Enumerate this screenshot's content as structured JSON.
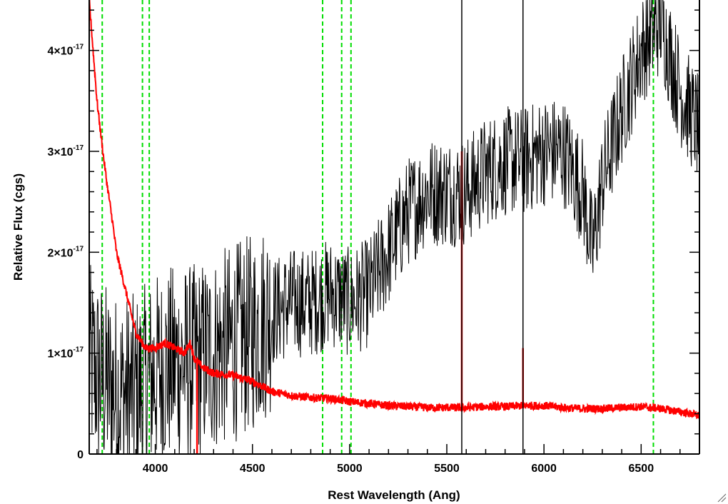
{
  "chart_data": {
    "type": "line",
    "title": "",
    "xlabel": "Rest Wavelength (Ang)",
    "ylabel": "Relative Flux (cgs)",
    "xlim": [
      3660,
      6800
    ],
    "ylim": [
      0,
      4.5e-17
    ],
    "x_ticks": [
      {
        "value": 4000,
        "label": "4000"
      },
      {
        "value": 4500,
        "label": "4500"
      },
      {
        "value": 5000,
        "label": "5000"
      },
      {
        "value": 5500,
        "label": "5500"
      },
      {
        "value": 6000,
        "label": "6000"
      },
      {
        "value": 6500,
        "label": "6500"
      }
    ],
    "y_ticks": [
      {
        "value": 0,
        "mantissa": "0",
        "exponent": ""
      },
      {
        "value": 1e-17,
        "mantissa": "1×10",
        "exponent": "-17"
      },
      {
        "value": 2e-17,
        "mantissa": "2×10",
        "exponent": "-17"
      },
      {
        "value": 3e-17,
        "mantissa": "3×10",
        "exponent": "-17"
      },
      {
        "value": 4e-17,
        "mantissa": "4×10",
        "exponent": "-17"
      }
    ],
    "grid": false,
    "series": [
      {
        "color": "#000000",
        "style": "noisy",
        "x": [
          3660,
          3700,
          3750,
          3800,
          3850,
          3900,
          3950,
          4000,
          4100,
          4200,
          4300,
          4400,
          4500,
          4600,
          4700,
          4800,
          4900,
          5000,
          5100,
          5200,
          5300,
          5400,
          5500,
          5600,
          5700,
          5800,
          5900,
          6000,
          6100,
          6200,
          6250,
          6300,
          6400,
          6500,
          6600,
          6700,
          6800
        ],
        "y": [
          9e-18,
          8e-18,
          7e-18,
          6e-18,
          6e-18,
          6e-18,
          7e-18,
          8e-18,
          9e-18,
          9e-18,
          1e-17,
          1.1e-17,
          1.2e-17,
          1.4e-17,
          1.5e-17,
          1.5e-17,
          1.6e-17,
          1.5e-17,
          1.6e-17,
          2e-17,
          2.4e-17,
          2.6e-17,
          2.6e-17,
          2.6e-17,
          2.8e-17,
          2.9e-17,
          2.9e-17,
          3e-17,
          3e-17,
          2.6e-17,
          2e-17,
          2.7e-17,
          3.4e-17,
          4e-17,
          4.3e-17,
          3.6e-17,
          3.2e-17
        ]
      },
      {
        "color": "#ff0000",
        "style": "smooth",
        "x": [
          3660,
          3700,
          3730,
          3750,
          3780,
          3800,
          3850,
          3900,
          3950,
          4000,
          4050,
          4100,
          4150,
          4180,
          4200,
          4250,
          4300,
          4400,
          4500,
          4600,
          4700,
          4800,
          4900,
          5000,
          5100,
          5200,
          5300,
          5400,
          5500,
          5600,
          5700,
          5800,
          5900,
          6000,
          6100,
          6200,
          6300,
          6400,
          6500,
          6600,
          6700,
          6800
        ],
        "y": [
          4.5e-17,
          3.5e-17,
          3e-17,
          2.7e-17,
          2.3e-17,
          2e-17,
          1.6e-17,
          1.2e-17,
          1.05e-17,
          1.05e-17,
          1.1e-17,
          1.05e-17,
          1e-17,
          1.1e-17,
          9.5e-18,
          8.5e-18,
          8e-18,
          7.8e-18,
          7.2e-18,
          6.2e-18,
          5.8e-18,
          5.6e-18,
          5.5e-18,
          5.2e-18,
          5e-18,
          4.8e-18,
          4.7e-18,
          4.6e-18,
          4.6e-18,
          4.6e-18,
          4.7e-18,
          4.7e-18,
          4.8e-18,
          4.8e-18,
          4.6e-18,
          4.5e-18,
          4.5e-18,
          4.6e-18,
          4.7e-18,
          4.5e-18,
          4.2e-18,
          3.8e-18
        ]
      }
    ],
    "spikes": [
      {
        "x": 5577,
        "y_low": 4.2e-18,
        "y_high": 3e-17,
        "color": "#ff0000"
      },
      {
        "x": 5892,
        "y_low": 4.5e-18,
        "y_high": 1.05e-17,
        "color": "#ff0000"
      },
      {
        "x": 5577,
        "y_low": 0.0,
        "y_high": 4.5e-17,
        "color": "#000000"
      },
      {
        "x": 5892,
        "y_low": 0.0,
        "y_high": 4.5e-17,
        "color": "#000000"
      },
      {
        "x": 4215,
        "y_low": 0.0,
        "y_high": 9e-18,
        "color": "#ff0000"
      }
    ],
    "reference_lines": {
      "color": "#00dd00",
      "style": "dashed",
      "x": [
        3727,
        3934,
        3969,
        4861,
        4959,
        5007,
        6563
      ]
    }
  }
}
